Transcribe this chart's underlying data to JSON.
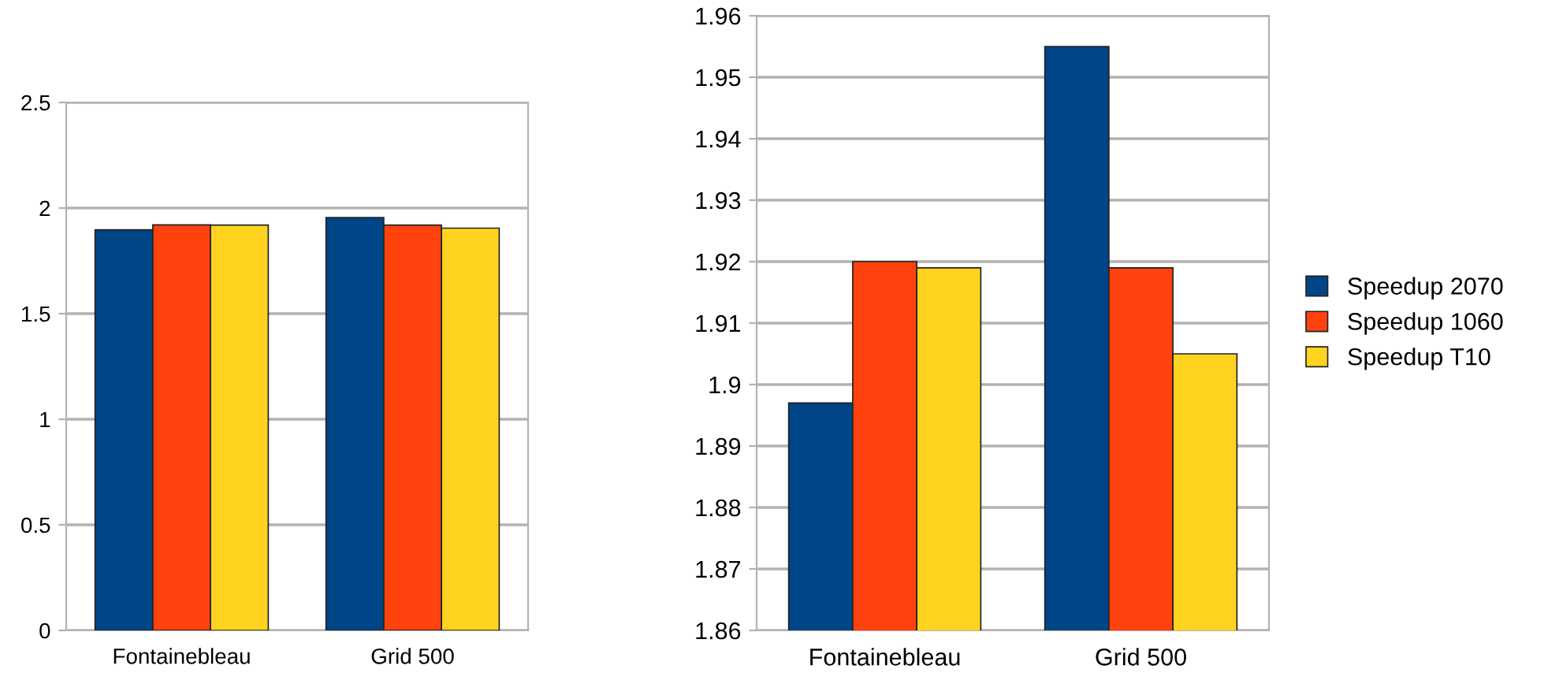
{
  "chart_data": [
    {
      "type": "bar",
      "categories": [
        "Fontainebleau",
        "Grid 500"
      ],
      "series": [
        {
          "color": "#004586",
          "values": [
            1.897,
            1.955
          ]
        },
        {
          "color": "#ff420e",
          "values": [
            1.92,
            1.919
          ]
        },
        {
          "color": "#ffd320",
          "values": [
            1.919,
            1.905
          ]
        }
      ],
      "ylim": [
        0,
        2.5
      ],
      "yticks": [
        0,
        0.5,
        1,
        1.5,
        2,
        2.5
      ],
      "grid": "y",
      "legend": false
    },
    {
      "type": "bar",
      "categories": [
        "Fontainebleau",
        "Grid 500"
      ],
      "series": [
        {
          "name": "Speedup 2070",
          "color": "#004586",
          "values": [
            1.897,
            1.955
          ]
        },
        {
          "name": "Speedup 1060",
          "color": "#ff420e",
          "values": [
            1.92,
            1.919
          ]
        },
        {
          "name": "Speedup T10",
          "color": "#ffd320",
          "values": [
            1.919,
            1.905
          ]
        }
      ],
      "ylim": [
        1.86,
        1.96
      ],
      "yticks": [
        1.86,
        1.87,
        1.88,
        1.89,
        1.9,
        1.91,
        1.92,
        1.93,
        1.94,
        1.95,
        1.96
      ],
      "grid": "y",
      "legend": "right"
    }
  ]
}
